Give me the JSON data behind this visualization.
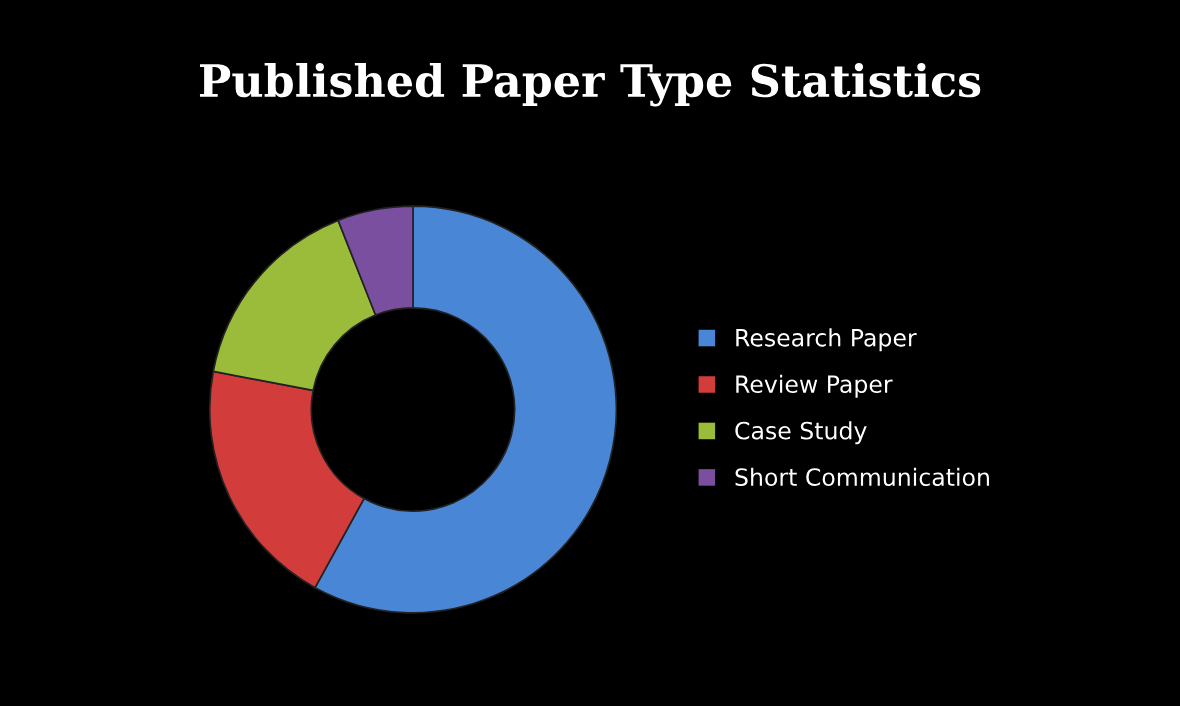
{
  "chart_data": {
    "type": "donut",
    "title": "Published Paper Type Statistics",
    "categories": [
      "Research Paper",
      "Review Paper",
      "Case Study",
      "Short Communication"
    ],
    "values": [
      58,
      20,
      16,
      6
    ],
    "colors": [
      "#4a86d6",
      "#d23c3a",
      "#9bbb3a",
      "#7a4fa0"
    ],
    "legend": "right"
  }
}
